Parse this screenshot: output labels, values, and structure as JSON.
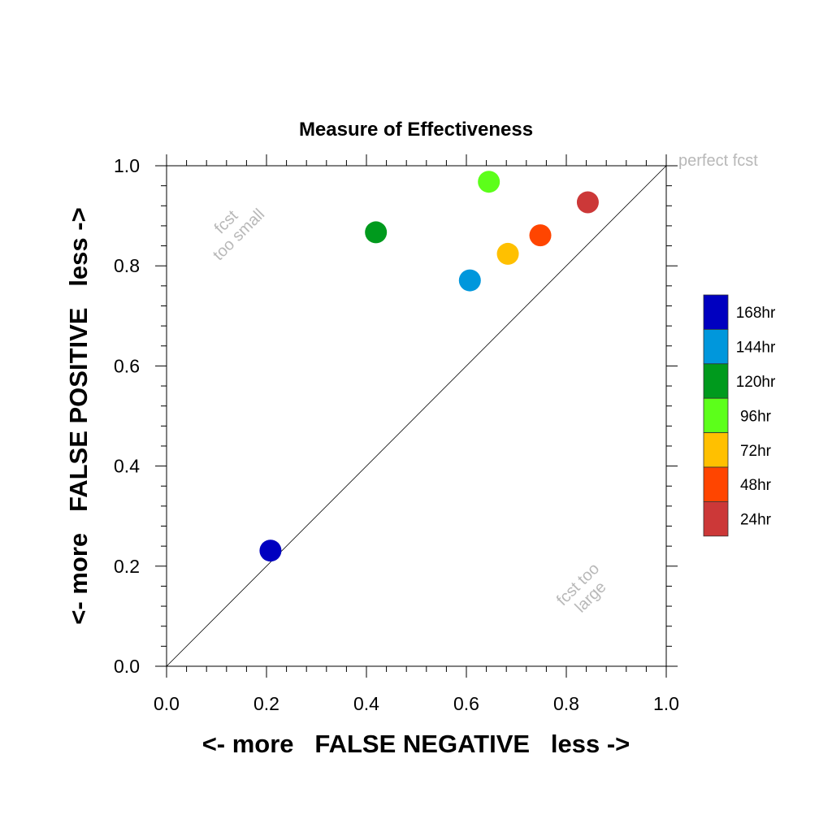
{
  "chart_data": {
    "type": "scatter",
    "title": "Measure of Effectiveness",
    "xlabel": "<- more   FALSE NEGATIVE   less ->",
    "ylabel": "<- more   FALSE POSITIVE   less ->",
    "xlim": [
      0.0,
      1.0
    ],
    "ylim": [
      0.0,
      1.0
    ],
    "x_ticks": [
      "0.0",
      "0.2",
      "0.4",
      "0.6",
      "0.8",
      "1.0"
    ],
    "y_ticks": [
      "0.0",
      "0.2",
      "0.4",
      "0.6",
      "0.8",
      "1.0"
    ],
    "grid": false,
    "diagonal_line": true,
    "legend_position": "right",
    "annotations": {
      "perfect": "perfect fcst",
      "small_line1": "fcst",
      "small_line2": "too small",
      "large_line1": "fcst too",
      "large_line2": "large"
    },
    "series": [
      {
        "name": "168hr",
        "color": "#0000c0",
        "x": 0.208,
        "y": 0.231
      },
      {
        "name": "144hr",
        "color": "#0097dc",
        "x": 0.607,
        "y": 0.771
      },
      {
        "name": "120hr",
        "color": "#009a1d",
        "x": 0.419,
        "y": 0.867
      },
      {
        "name": "96hr",
        "color": "#5cff1a",
        "x": 0.645,
        "y": 0.968
      },
      {
        "name": "72hr",
        "color": "#ffc000",
        "x": 0.683,
        "y": 0.824
      },
      {
        "name": "48hr",
        "color": "#ff4500",
        "x": 0.748,
        "y": 0.861
      },
      {
        "name": "24hr",
        "color": "#cc3838",
        "x": 0.843,
        "y": 0.927
      }
    ]
  }
}
